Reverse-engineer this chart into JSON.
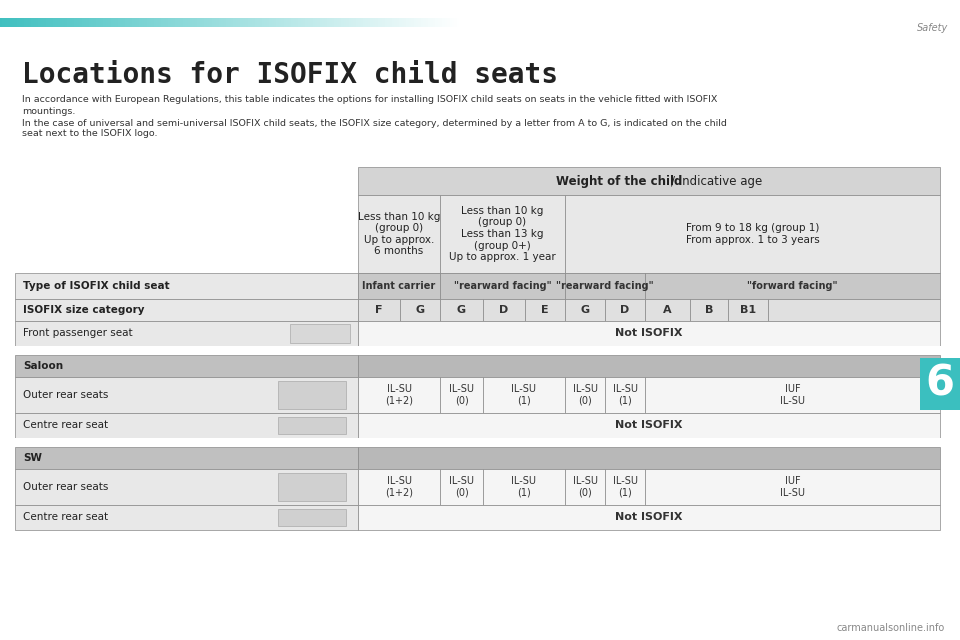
{
  "bg_color": "#ffffff",
  "page_title": "Locations for ISOFIX child seats",
  "header_bar_color_left": "#40bfbf",
  "section_label": "Safety",
  "chapter_number": "6",
  "chapter_color": "#3bbfbf",
  "body_text_1": "In accordance with European Regulations, this table indicates the options for installing ISOFIX child seats on seats in the vehicle fitted with ISOFIX",
  "body_text_2": "mountings.",
  "body_text_3": "In the case of universal and semi-universal ISOFIX child seats, the ISOFIX size category, determined by a letter from A to G, is indicated on the child",
  "body_text_4": "seat next to the ISOFIX logo.",
  "weight_header": "Weight of the child / indicative age",
  "col1_header": "Less than 10 kg\n(group 0)\nUp to approx.\n6 months",
  "col2_header": "Less than 10 kg\n(group 0)\nLess than 13 kg\n(group 0+)\nUp to approx. 1 year",
  "col3_header": "From 9 to 18 kg (group 1)\nFrom approx. 1 to 3 years",
  "type_label": "Type of ISOFIX child seat",
  "type_col1": "Infant carrier",
  "type_col2": "\"rearward facing\"",
  "type_col3": "\"rearward facing\"",
  "type_col4": "\"forward facing\"",
  "size_label": "ISOFIX size category",
  "size_vals": [
    "F",
    "G",
    "G",
    "D",
    "E",
    "G",
    "D",
    "A",
    "B",
    "B1"
  ],
  "front_seat_label": "Front passenger seat",
  "front_seat_val": "Not ISOFIX",
  "saloon_label": "Saloon",
  "saloon_outer_label": "Outer rear seats",
  "saloon_outer_vals": [
    "IL-SU\n(1+2)",
    "IL-SU\n(0)",
    "IL-SU\n(1)",
    "IL-SU\n(0)",
    "IL-SU\n(1)",
    "IUF\nIL-SU"
  ],
  "saloon_centre_label": "Centre rear seat",
  "saloon_centre_val": "Not ISOFIX",
  "sw_label": "SW",
  "sw_outer_label": "Outer rear seats",
  "sw_outer_vals": [
    "IL-SU\n(1+2)",
    "IL-SU\n(0)",
    "IL-SU\n(1)",
    "IL-SU\n(0)",
    "IL-SU\n(1)",
    "IUF\nIL-SU"
  ],
  "sw_centre_label": "Centre rear seat",
  "sw_centre_val": "Not ISOFIX",
  "watermark": "carmanualsonline.info"
}
